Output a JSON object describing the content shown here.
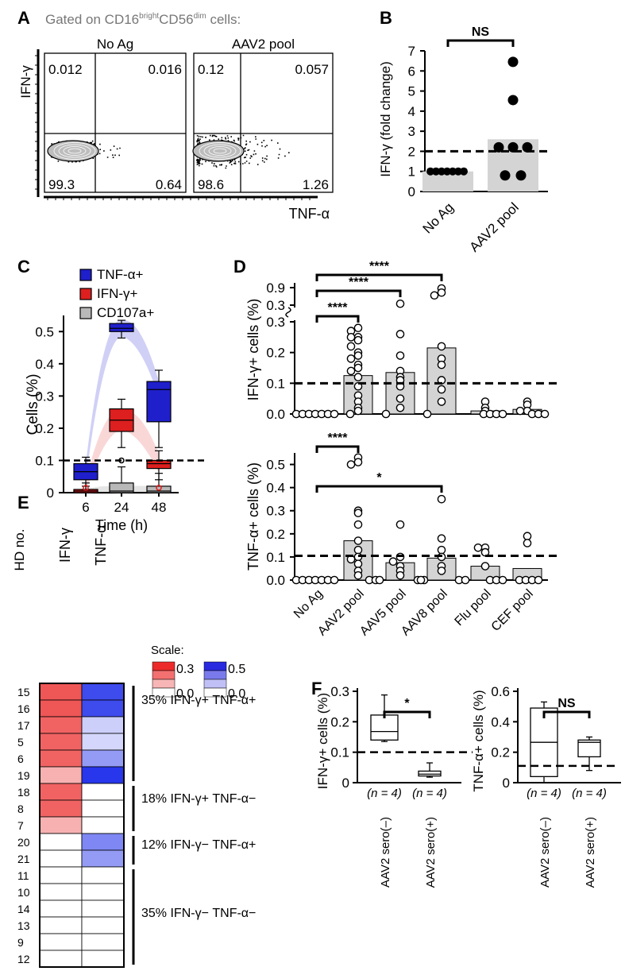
{
  "figure": {
    "panel_labels": {
      "A": "A",
      "B": "B",
      "C": "C",
      "D": "D",
      "E": "E",
      "F": "F"
    },
    "gate_title": {
      "prefix": "Gated on CD16",
      "sup1": "bright",
      "mid": "CD56",
      "sup2": "dim",
      "suffix": " cells:"
    },
    "colors": {
      "tnf_blue": "#1f1fcc",
      "ifn_red": "#dd1f1f",
      "cd107_gray": "#b8b8b8",
      "bar_gray": "#d4d4d4"
    }
  },
  "panel_a": {
    "y_label": "IFN-γ",
    "x_label": "TNF-α",
    "plots": [
      {
        "title": "No Ag",
        "q_ul": "0.012",
        "q_ur": "0.016",
        "q_ll": "99.3",
        "q_lr": "0.64"
      },
      {
        "title": "AAV2 pool",
        "q_ul": "0.12",
        "q_ur": "0.057",
        "q_ll": "98.6",
        "q_lr": "1.26"
      }
    ]
  },
  "chart_data": [
    {
      "panel": "B",
      "type": "bar",
      "ylabel": "IFN-γ (fold change)",
      "ylim": [
        0,
        7
      ],
      "yticks": [
        "0",
        "1",
        "2",
        "3",
        "4",
        "5",
        "6",
        "7"
      ],
      "categories": [
        "No Ag",
        "AAV2 pool"
      ],
      "values": [
        1.0,
        2.6
      ],
      "points": [
        [
          1,
          1,
          1,
          1,
          1,
          1,
          1
        ],
        [
          6.45,
          4.55,
          2.2,
          2.2,
          2.2,
          0.8,
          0.8
        ]
      ],
      "threshold": 2.0,
      "significance": "NS"
    },
    {
      "panel": "C",
      "type": "box",
      "ylabel": "Cells (%)",
      "xlabel": "Time (h)",
      "ylim": [
        0,
        0.55
      ],
      "yticks": [
        "0",
        "0.1",
        "0.2",
        "0.3",
        "0.4",
        "0.5"
      ],
      "categories": [
        "6",
        "24",
        "48"
      ],
      "threshold": 0.1,
      "legend": [
        "TNF-α+",
        "IFN-γ+",
        "CD107a+"
      ],
      "series": [
        {
          "name": "TNF-α+",
          "boxes": [
            [
              0.02,
              0.04,
              0.065,
              0.09,
              0.11
            ],
            [
              0.48,
              0.5,
              0.51,
              0.525,
              0.535
            ],
            [
              0.14,
              0.22,
              0.32,
              0.345,
              0.38
            ]
          ]
        },
        {
          "name": "IFN-γ+",
          "boxes": [
            [
              0.0,
              0.0,
              0.005,
              0.01,
              0.03
            ],
            [
              0.14,
              0.19,
              0.225,
              0.26,
              0.29
            ],
            [
              0.04,
              0.075,
              0.09,
              0.1,
              0.13
            ]
          ]
        },
        {
          "name": "CD107a+",
          "boxes": [
            [
              0.0,
              0.0,
              0.0,
              0.005,
              0.01
            ],
            [
              0.0,
              0.0,
              0.005,
              0.03,
              0.08
            ],
            [
              0.0,
              0.0,
              0.005,
              0.02,
              0.06
            ]
          ]
        }
      ]
    },
    {
      "panel": "D-top",
      "type": "bar",
      "ylabel": "IFN-γ+ cells (%)",
      "ylim": [
        0,
        0.3
      ],
      "yticks": [
        "0.0",
        "0.1",
        "0.2",
        "0.3"
      ],
      "yticks_upper": [
        "0.3",
        "0.9"
      ],
      "categories": [
        "No Ag",
        "AAV2 pool",
        "AAV5 pool",
        "AAV8 pool",
        "Flu pool",
        "CEF pool"
      ],
      "values": [
        0.0,
        0.125,
        0.135,
        0.215,
        0.01,
        0.015
      ],
      "points": [
        [
          0,
          0,
          0,
          0,
          0,
          0,
          0
        ],
        [
          0.28,
          0.27,
          0.25,
          0.25,
          0.24,
          0.22,
          0.2,
          0.19,
          0.18,
          0.16,
          0.15,
          0.14,
          0.12,
          0.09,
          0.06,
          0.04,
          0.02,
          0.01,
          0
        ],
        [
          0.35,
          0.26,
          0.19,
          0.14,
          0.12,
          0.11,
          0.09,
          0.05,
          0.02,
          0
        ],
        [
          0.9,
          0.75,
          0.65,
          0.22,
          0.18,
          0.16,
          0.11,
          0.08,
          0.04,
          0
        ],
        [
          0.04,
          0.02,
          0.01,
          0,
          0,
          0,
          0
        ],
        [
          0.04,
          0.03,
          0.01,
          0.01,
          0,
          0,
          0
        ]
      ],
      "threshold": 0.1,
      "significance": [
        "****",
        "****",
        "****"
      ]
    },
    {
      "panel": "D-bottom",
      "type": "bar",
      "ylabel": "TNF-α+ cells (%)",
      "ylim": [
        0,
        0.55
      ],
      "yticks": [
        "0.0",
        "0.1",
        "0.2",
        "0.3",
        "0.4",
        "0.5"
      ],
      "categories": [
        "No Ag",
        "AAV2 pool",
        "AAV5 pool",
        "AAV8 pool",
        "Flu pool",
        "CEF pool"
      ],
      "values": [
        0.0,
        0.17,
        0.075,
        0.095,
        0.06,
        0.05
      ],
      "points": [
        [
          0,
          0,
          0,
          0,
          0,
          0,
          0
        ],
        [
          0.53,
          0.51,
          0.5,
          0.3,
          0.29,
          0.24,
          0.17,
          0.13,
          0.1,
          0.09,
          0.07,
          0.04,
          0.02,
          0,
          0
        ],
        [
          0.24,
          0.1,
          0.08,
          0.06,
          0.04,
          0.02,
          0,
          0,
          0
        ],
        [
          0.35,
          0.18,
          0.13,
          0.1,
          0.06,
          0.04,
          0,
          0,
          0
        ],
        [
          0.14,
          0.14,
          0.12,
          0.06,
          0,
          0,
          0
        ],
        [
          0.19,
          0.16,
          0,
          0,
          0,
          0
        ]
      ],
      "threshold": 0.105,
      "significance": [
        "****",
        "*"
      ]
    },
    {
      "panel": "E",
      "type": "heatmap",
      "row_header": "HD no.",
      "columns": [
        "IFN-γ",
        "TNF-α"
      ],
      "rows": [
        "15",
        "16",
        "17",
        "5",
        "6",
        "19",
        "18",
        "8",
        "7",
        "20",
        "21",
        "11",
        "10",
        "14",
        "13",
        "9",
        "12"
      ],
      "values": [
        [
          0.26,
          0.45
        ],
        [
          0.26,
          0.45
        ],
        [
          0.24,
          0.12
        ],
        [
          0.24,
          0.1
        ],
        [
          0.24,
          0.25
        ],
        [
          0.12,
          0.5
        ],
        [
          0.24,
          0.0
        ],
        [
          0.24,
          0.0
        ],
        [
          0.12,
          0.0
        ],
        [
          0.0,
          0.3
        ],
        [
          0.0,
          0.25
        ],
        [
          0.0,
          0.0
        ],
        [
          0.0,
          0.0
        ],
        [
          0.0,
          0.0
        ],
        [
          0.0,
          0.0
        ],
        [
          0.0,
          0.0
        ],
        [
          0.0,
          0.0
        ]
      ],
      "scale_label": "Scale:",
      "scale_ifn": [
        "0.3",
        "0.0"
      ],
      "scale_tnf": [
        "0.5",
        "0.0"
      ],
      "groups": [
        {
          "label": "35% IFN-γ+ TNF-α+",
          "rows": 6
        },
        {
          "label": "18% IFN-γ+ TNF-α−",
          "rows": 3
        },
        {
          "label": "12% IFN-γ− TNF-α+",
          "rows": 2
        },
        {
          "label": "35% IFN-γ− TNF-α−",
          "rows": 6
        }
      ]
    },
    {
      "panel": "F-left",
      "type": "box",
      "ylabel": "IFN-γ+ cells (%)",
      "ylim": [
        0,
        0.3
      ],
      "yticks": [
        "0",
        "0.1",
        "0.2",
        "0.3"
      ],
      "categories": [
        "AAV2 sero(–)",
        "AAV2 sero(+)"
      ],
      "n_labels": [
        "(n = 4)",
        "(n = 4)"
      ],
      "boxes": [
        [
          0.135,
          0.14,
          0.168,
          0.222,
          0.288
        ],
        [
          0.018,
          0.022,
          0.028,
          0.038,
          0.065
        ]
      ],
      "threshold": 0.1,
      "significance": "*"
    },
    {
      "panel": "F-right",
      "type": "box",
      "ylabel": "TNF-α+ cells (%)",
      "ylim": [
        0,
        0.6
      ],
      "yticks": [
        "0",
        "0.2",
        "0.4",
        "0.6"
      ],
      "categories": [
        "AAV2 sero(–)",
        "AAV2 sero(+)"
      ],
      "n_labels": [
        "(n = 4)",
        "(n = 4)"
      ],
      "boxes": [
        [
          0.0,
          0.04,
          0.265,
          0.49,
          0.53
        ],
        [
          0.08,
          0.17,
          0.265,
          0.28,
          0.3
        ]
      ],
      "threshold": 0.11,
      "significance": "NS"
    }
  ]
}
